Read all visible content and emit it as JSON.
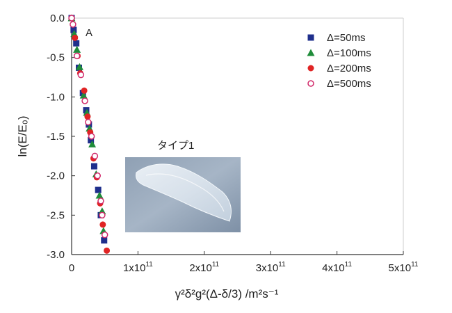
{
  "chart_data": {
    "type": "scatter",
    "title": "",
    "xlabel": "γ²δ²g²(Δ-δ/3) /m²s⁻¹",
    "ylabel": "ln(E/E₀)",
    "xlim": [
      0,
      5
    ],
    "ylim": [
      -3.0,
      0.0
    ],
    "x_unit_text": "x10",
    "x_unit_exp": "11",
    "x_ticks": [
      {
        "value": 0,
        "label": "0",
        "exp": ""
      },
      {
        "value": 1,
        "label": "1x10",
        "exp": "11"
      },
      {
        "value": 2,
        "label": "2x10",
        "exp": "11"
      },
      {
        "value": 3,
        "label": "3x10",
        "exp": "11"
      },
      {
        "value": 4,
        "label": "4x10",
        "exp": "11"
      },
      {
        "value": 5,
        "label": "5x10",
        "exp": "11"
      }
    ],
    "y_ticks": [
      {
        "value": 0.0,
        "label": "0.0"
      },
      {
        "value": -0.5,
        "label": "-0.5"
      },
      {
        "value": -1.0,
        "label": "-1.0"
      },
      {
        "value": -1.5,
        "label": "-1.5"
      },
      {
        "value": -2.0,
        "label": "-2.0"
      },
      {
        "value": -2.5,
        "label": "-2.5"
      },
      {
        "value": -3.0,
        "label": "-3.0"
      }
    ],
    "grid": false,
    "legend_position": "top-right",
    "panel_label": "A",
    "inset_label": "タイプ1",
    "series": [
      {
        "name": "Δ=50ms",
        "marker": "square",
        "color": "#1f2f8c",
        "points": [
          [
            0,
            0
          ],
          [
            0.03,
            -0.15
          ],
          [
            0.07,
            -0.32
          ],
          [
            0.11,
            -0.63
          ],
          [
            0.17,
            -0.95
          ],
          [
            0.22,
            -1.17
          ],
          [
            0.26,
            -1.35
          ],
          [
            0.29,
            -1.55
          ],
          [
            0.34,
            -1.88
          ],
          [
            0.4,
            -2.18
          ],
          [
            0.44,
            -2.5
          ],
          [
            0.49,
            -2.82
          ]
        ]
      },
      {
        "name": "Δ=100ms",
        "marker": "triangle",
        "color": "#1f8c3a",
        "points": [
          [
            0,
            0
          ],
          [
            0.04,
            -0.2
          ],
          [
            0.08,
            -0.4
          ],
          [
            0.12,
            -0.62
          ],
          [
            0.18,
            -0.98
          ],
          [
            0.23,
            -1.2
          ],
          [
            0.27,
            -1.4
          ],
          [
            0.31,
            -1.6
          ],
          [
            0.37,
            -1.98
          ],
          [
            0.42,
            -2.25
          ],
          [
            0.46,
            -2.45
          ],
          [
            0.48,
            -2.7
          ]
        ]
      },
      {
        "name": "Δ=200ms",
        "marker": "circle",
        "color": "#e02424",
        "points": [
          [
            0,
            0
          ],
          [
            0.05,
            -0.25
          ],
          [
            0.09,
            -0.48
          ],
          [
            0.13,
            -0.7
          ],
          [
            0.19,
            -0.92
          ],
          [
            0.24,
            -1.25
          ],
          [
            0.28,
            -1.45
          ],
          [
            0.33,
            -1.78
          ],
          [
            0.38,
            -2.02
          ],
          [
            0.43,
            -2.35
          ],
          [
            0.47,
            -2.62
          ],
          [
            0.53,
            -2.95
          ]
        ]
      },
      {
        "name": "Δ=500ms",
        "marker": "open-circle",
        "color": "#d12a6a",
        "points": [
          [
            0,
            0
          ],
          [
            0.02,
            -0.08
          ],
          [
            0.08,
            -0.48
          ],
          [
            0.14,
            -0.72
          ],
          [
            0.2,
            -1.05
          ],
          [
            0.25,
            -1.32
          ],
          [
            0.3,
            -1.5
          ],
          [
            0.35,
            -1.75
          ],
          [
            0.39,
            -2.0
          ],
          [
            0.44,
            -2.32
          ],
          [
            0.46,
            -2.5
          ],
          [
            0.5,
            -2.75
          ]
        ]
      }
    ]
  }
}
